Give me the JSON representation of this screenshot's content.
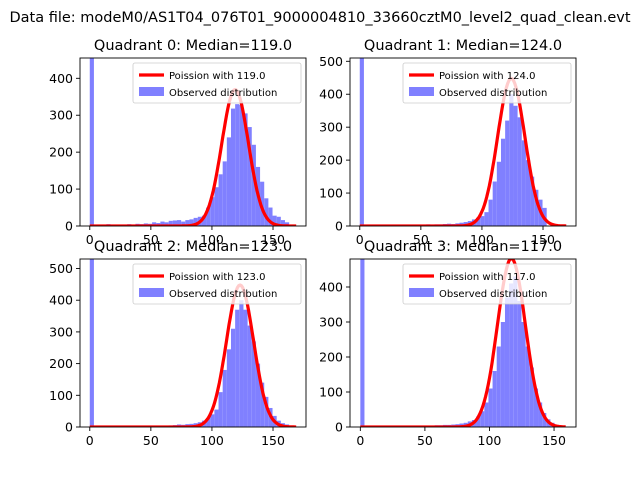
{
  "suptitle": "Data file: modeM0/AS1T04_076T01_9000004810_33660cztM0_level2_quad_clean.evt",
  "colors": {
    "hist": "#8080ff",
    "curve": "#ff0000",
    "background": "#ffffff"
  },
  "chart_data": [
    {
      "type": "bar",
      "title": "Quadrant 0: Median=119.0",
      "median": 119,
      "xlim": [
        -8,
        177
      ],
      "ylim": [
        0,
        455
      ],
      "xticks": [
        0,
        50,
        100,
        150
      ],
      "yticks": [
        0,
        100,
        200,
        300,
        400
      ],
      "legend_position": "top-right",
      "legend": [
        "Poission with 119.0",
        "Observed distribution"
      ],
      "bin_width": 3.4,
      "bins": [
        [
          0,
          455
        ],
        [
          3.4,
          4
        ],
        [
          6.8,
          3
        ],
        [
          10.2,
          4
        ],
        [
          13.6,
          5
        ],
        [
          17,
          3
        ],
        [
          20.4,
          4
        ],
        [
          23.8,
          3
        ],
        [
          27.2,
          4
        ],
        [
          30.6,
          5
        ],
        [
          34,
          3
        ],
        [
          37.4,
          6
        ],
        [
          40.8,
          5
        ],
        [
          44.2,
          7
        ],
        [
          47.6,
          6
        ],
        [
          51,
          10
        ],
        [
          54.4,
          8
        ],
        [
          57.8,
          12
        ],
        [
          61.2,
          10
        ],
        [
          64.6,
          14
        ],
        [
          68,
          15
        ],
        [
          71.4,
          16
        ],
        [
          74.8,
          12
        ],
        [
          78.2,
          16
        ],
        [
          81.6,
          18
        ],
        [
          85,
          22
        ],
        [
          88.4,
          25
        ],
        [
          91.8,
          28
        ],
        [
          95.2,
          50
        ],
        [
          98.6,
          78
        ],
        [
          102,
          105
        ],
        [
          105.4,
          140
        ],
        [
          108.8,
          175
        ],
        [
          112.2,
          240
        ],
        [
          115.6,
          318
        ],
        [
          119,
          330
        ],
        [
          122.4,
          328
        ],
        [
          125.8,
          305
        ],
        [
          129.2,
          268
        ],
        [
          132.6,
          220
        ],
        [
          136,
          160
        ],
        [
          139.4,
          120
        ],
        [
          142.8,
          75
        ],
        [
          146.2,
          50
        ],
        [
          149.6,
          28
        ],
        [
          153,
          25
        ],
        [
          156.4,
          16
        ],
        [
          159.8,
          10
        ]
      ]
    },
    {
      "type": "bar",
      "title": "Quadrant 1: Median=124.0",
      "median": 124,
      "xlim": [
        -8,
        177
      ],
      "ylim": [
        0,
        510
      ],
      "xticks": [
        0,
        50,
        100,
        150
      ],
      "yticks": [
        0,
        100,
        200,
        300,
        400,
        500
      ],
      "legend_position": "top-right",
      "legend": [
        "Poission with 124.0",
        "Observed distribution"
      ],
      "bin_width": 3.4,
      "bins": [
        [
          0,
          510
        ],
        [
          3.4,
          3
        ],
        [
          6.8,
          2
        ],
        [
          10.2,
          3
        ],
        [
          13.6,
          2
        ],
        [
          17,
          3
        ],
        [
          20.4,
          2
        ],
        [
          23.8,
          3
        ],
        [
          27.2,
          4
        ],
        [
          30.6,
          3
        ],
        [
          34,
          2
        ],
        [
          37.4,
          4
        ],
        [
          40.8,
          3
        ],
        [
          44.2,
          3
        ],
        [
          47.6,
          4
        ],
        [
          51,
          3
        ],
        [
          54.4,
          5
        ],
        [
          57.8,
          4
        ],
        [
          61.2,
          5
        ],
        [
          64.6,
          5
        ],
        [
          68,
          6
        ],
        [
          71.4,
          7
        ],
        [
          74.8,
          6
        ],
        [
          78.2,
          8
        ],
        [
          81.6,
          10
        ],
        [
          85,
          12
        ],
        [
          88.4,
          15
        ],
        [
          91.8,
          20
        ],
        [
          95.2,
          25
        ],
        [
          98.6,
          30
        ],
        [
          102,
          42
        ],
        [
          105.4,
          80
        ],
        [
          108.8,
          135
        ],
        [
          112.2,
          195
        ],
        [
          115.6,
          265
        ],
        [
          119,
          320
        ],
        [
          122.4,
          400
        ],
        [
          125.8,
          365
        ],
        [
          129.2,
          330
        ],
        [
          132.6,
          260
        ],
        [
          136,
          200
        ],
        [
          139.4,
          150
        ],
        [
          142.8,
          110
        ],
        [
          146.2,
          80
        ],
        [
          149.6,
          55
        ]
      ]
    },
    {
      "type": "bar",
      "title": "Quadrant 2: Median=123.0",
      "median": 123,
      "xlim": [
        -8,
        177
      ],
      "ylim": [
        0,
        530
      ],
      "xticks": [
        0,
        50,
        100,
        150
      ],
      "yticks": [
        0,
        100,
        200,
        300,
        400,
        500
      ],
      "legend_position": "top-right",
      "legend": [
        "Poission with 123.0",
        "Observed distribution"
      ],
      "bin_width": 3.4,
      "bins": [
        [
          0,
          530
        ],
        [
          3.4,
          3
        ],
        [
          6.8,
          2
        ],
        [
          10.2,
          3
        ],
        [
          13.6,
          2
        ],
        [
          17,
          3
        ],
        [
          20.4,
          2
        ],
        [
          23.8,
          2
        ],
        [
          27.2,
          3
        ],
        [
          30.6,
          2
        ],
        [
          34,
          3
        ],
        [
          37.4,
          2
        ],
        [
          40.8,
          3
        ],
        [
          44.2,
          2
        ],
        [
          47.6,
          3
        ],
        [
          51,
          3
        ],
        [
          54.4,
          4
        ],
        [
          57.8,
          3
        ],
        [
          61.2,
          4
        ],
        [
          64.6,
          5
        ],
        [
          68,
          6
        ],
        [
          71.4,
          8
        ],
        [
          74.8,
          7
        ],
        [
          78.2,
          9
        ],
        [
          81.6,
          10
        ],
        [
          85,
          12
        ],
        [
          88.4,
          15
        ],
        [
          91.8,
          20
        ],
        [
          95.2,
          28
        ],
        [
          98.6,
          40
        ],
        [
          102,
          55
        ],
        [
          105.4,
          110
        ],
        [
          108.8,
          180
        ],
        [
          112.2,
          245
        ],
        [
          115.6,
          310
        ],
        [
          119,
          370
        ],
        [
          122.4,
          400
        ],
        [
          125.8,
          370
        ],
        [
          129.2,
          320
        ],
        [
          132.6,
          270
        ],
        [
          136,
          200
        ],
        [
          139.4,
          140
        ],
        [
          142.8,
          95
        ],
        [
          146.2,
          60
        ],
        [
          149.6,
          35
        ],
        [
          153,
          20
        ],
        [
          156.4,
          12
        ],
        [
          159.8,
          8
        ]
      ]
    },
    {
      "type": "bar",
      "title": "Quadrant 3: Median=117.0",
      "median": 117,
      "xlim": [
        -8,
        167
      ],
      "ylim": [
        0,
        480
      ],
      "xticks": [
        0,
        50,
        100,
        150
      ],
      "yticks": [
        0,
        100,
        200,
        300,
        400
      ],
      "legend_position": "top-right",
      "legend": [
        "Poission with 117.0",
        "Observed distribution"
      ],
      "bin_width": 3.2,
      "bins": [
        [
          0,
          480
        ],
        [
          3.2,
          3
        ],
        [
          6.4,
          2
        ],
        [
          9.6,
          3
        ],
        [
          12.8,
          2
        ],
        [
          16,
          3
        ],
        [
          19.2,
          2
        ],
        [
          22.4,
          3
        ],
        [
          25.6,
          2
        ],
        [
          28.8,
          3
        ],
        [
          32,
          3
        ],
        [
          35.2,
          2
        ],
        [
          38.4,
          3
        ],
        [
          41.6,
          3
        ],
        [
          44.8,
          4
        ],
        [
          48,
          3
        ],
        [
          51.2,
          4
        ],
        [
          54.4,
          4
        ],
        [
          57.6,
          5
        ],
        [
          60.8,
          5
        ],
        [
          64,
          6
        ],
        [
          67.2,
          6
        ],
        [
          70.4,
          7
        ],
        [
          73.6,
          8
        ],
        [
          76.8,
          10
        ],
        [
          80,
          12
        ],
        [
          83.2,
          16
        ],
        [
          86.4,
          20
        ],
        [
          89.6,
          30
        ],
        [
          92.8,
          45
        ],
        [
          96,
          70
        ],
        [
          99.2,
          110
        ],
        [
          102.4,
          160
        ],
        [
          105.6,
          230
        ],
        [
          108.8,
          300
        ],
        [
          112,
          370
        ],
        [
          115.2,
          410
        ],
        [
          118.4,
          430
        ],
        [
          121.6,
          360
        ],
        [
          124.8,
          300
        ],
        [
          128,
          230
        ],
        [
          131.2,
          170
        ],
        [
          134.4,
          110
        ],
        [
          137.6,
          70
        ],
        [
          140.8,
          40
        ],
        [
          144,
          22
        ],
        [
          147.2,
          12
        ],
        [
          150.4,
          6
        ]
      ]
    }
  ]
}
